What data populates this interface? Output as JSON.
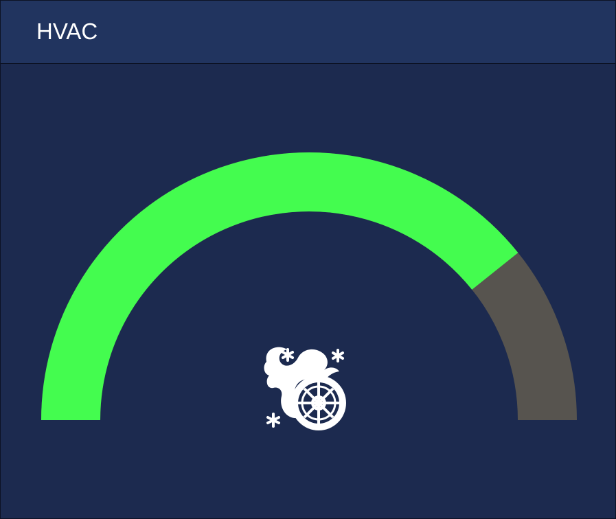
{
  "header": {
    "title": "HVAC"
  },
  "gauge": {
    "level_percent": 78.5,
    "colors": {
      "filled": "#44fc4f",
      "empty": "#57544f",
      "icon": "#ffffff",
      "background": "#1c2a4f",
      "header": "#21345f"
    },
    "icon": "fan-snowflake-icon"
  }
}
